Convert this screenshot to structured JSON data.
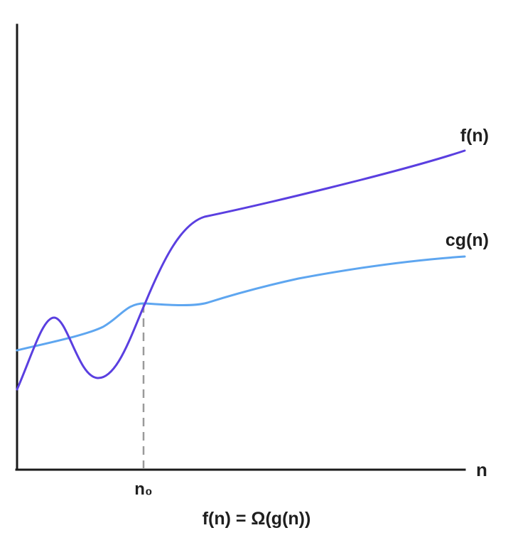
{
  "diagram": {
    "x_axis_label": "n",
    "threshold_label": "n₀",
    "formula": "f(n) = Ω(g(n))",
    "curves": [
      {
        "id": "f",
        "label": "f(n)",
        "color": "#5a3fe0"
      },
      {
        "id": "cg",
        "label": "cg(n)",
        "color": "#5ea6f0"
      }
    ],
    "axis_color": "#1a1a1a",
    "threshold_line_color": "#9a9a9a"
  }
}
